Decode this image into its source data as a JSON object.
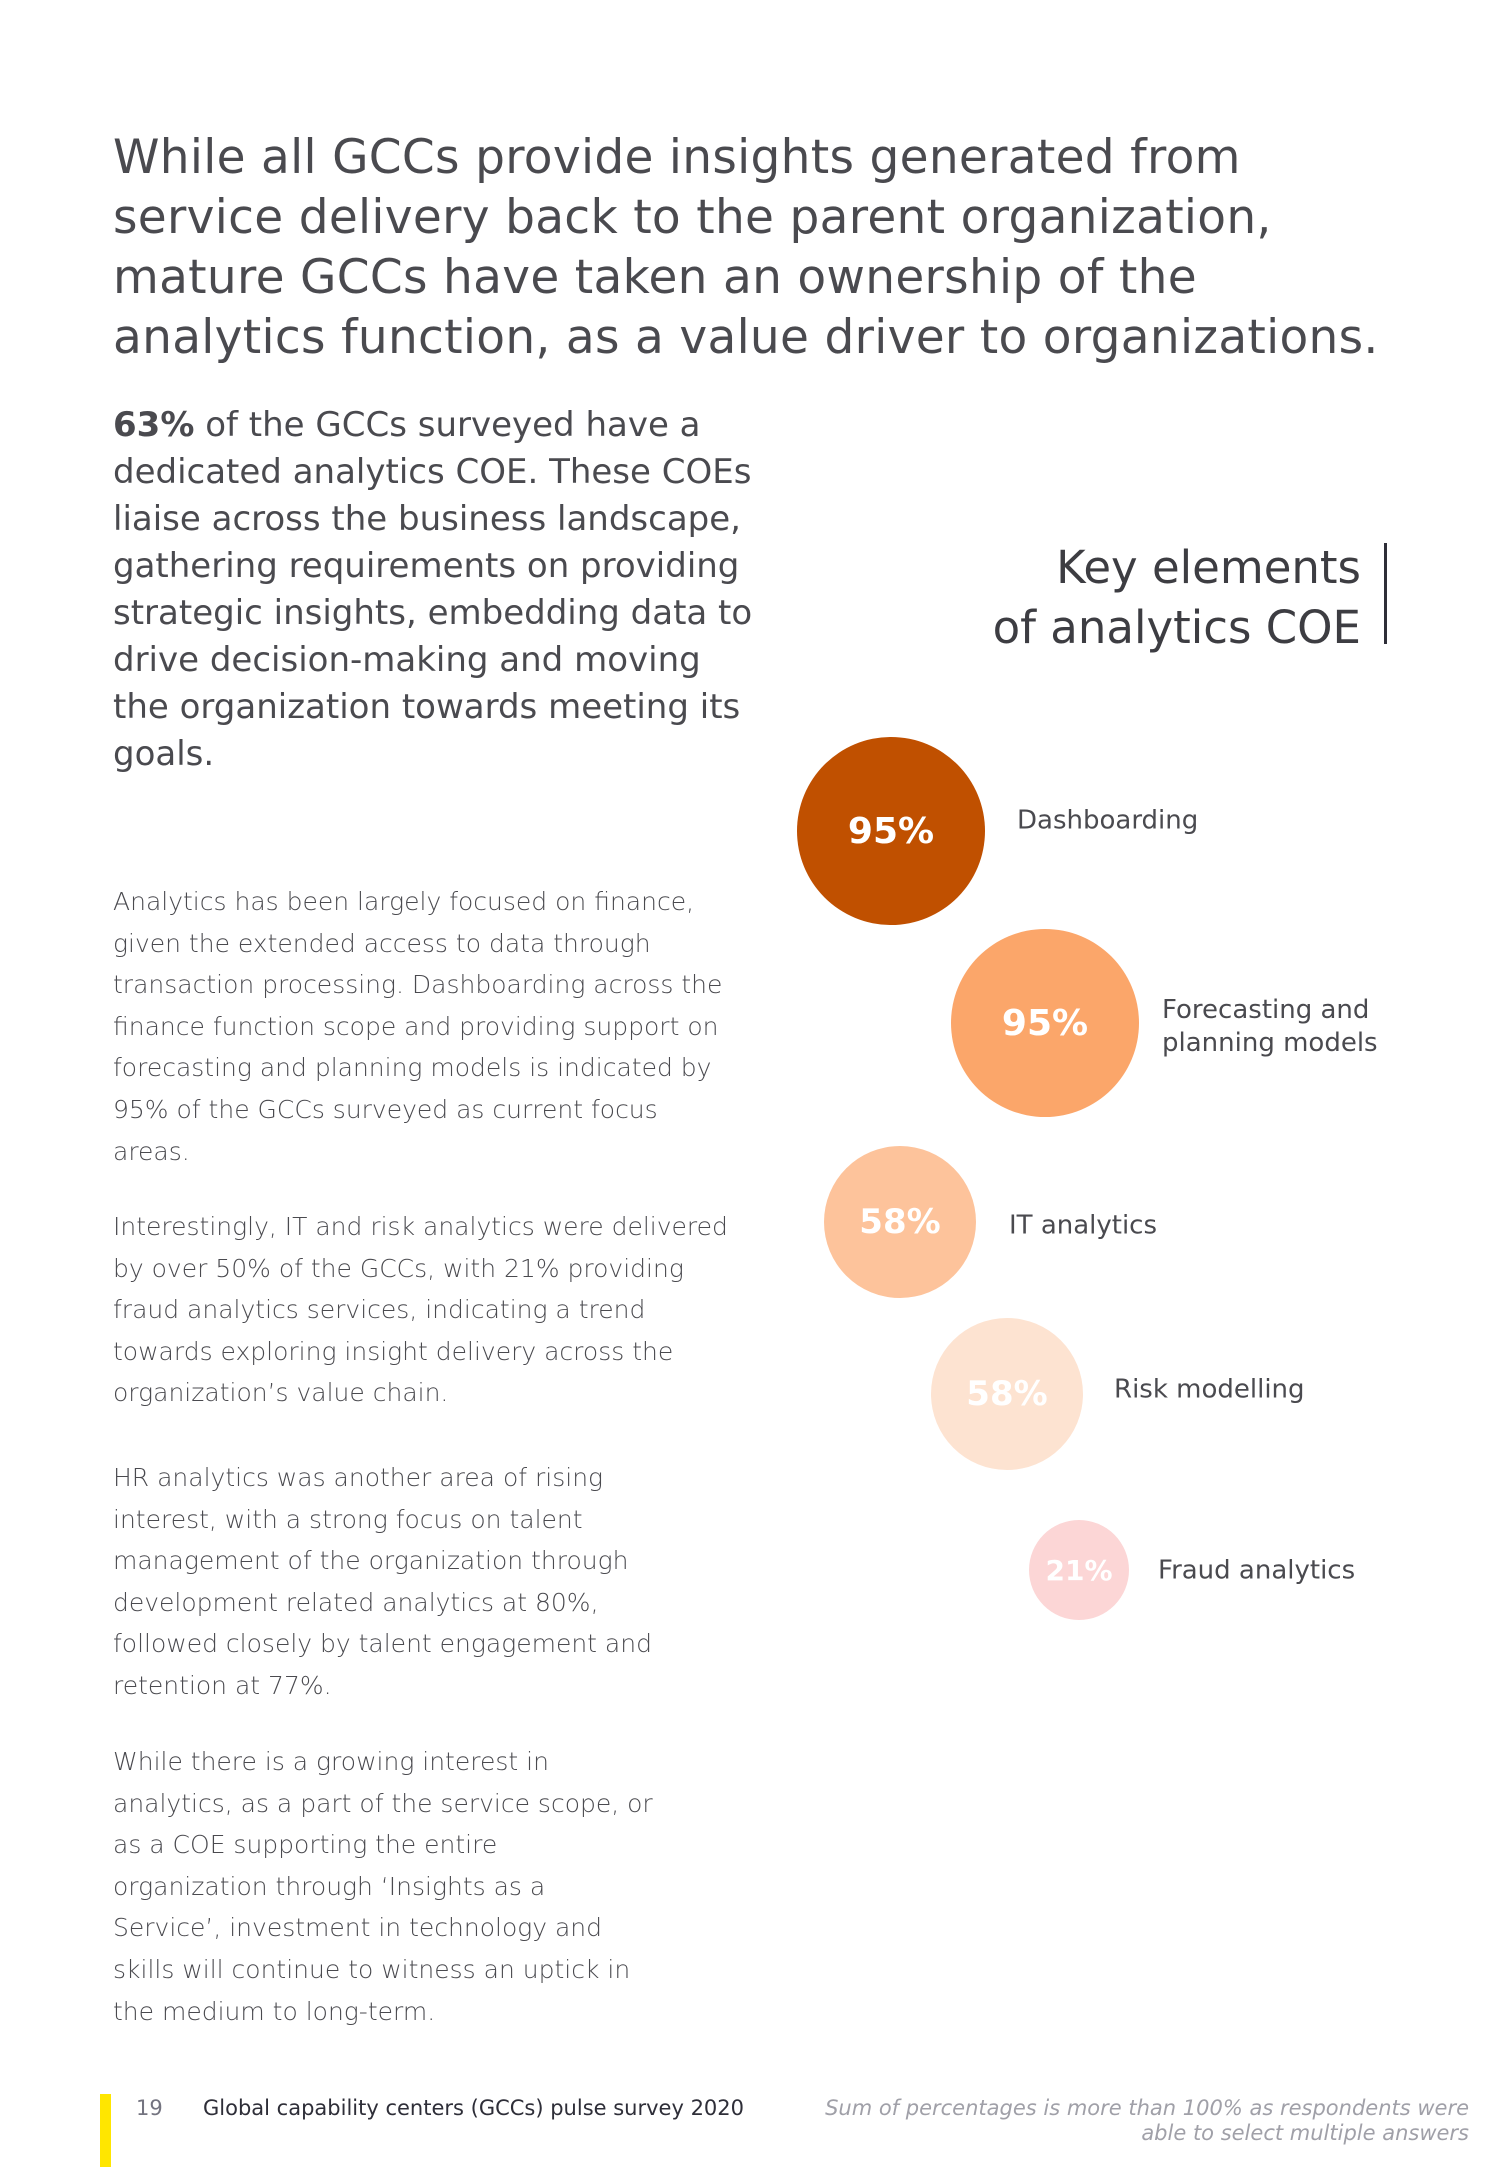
{
  "headline": "While all GCCs provide insights generated from service delivery back to the parent organization, mature GCCs have taken an ownership of the analytics function, as a value driver to organizations.",
  "lead": {
    "highlight": "63%",
    "text": " of the GCCs surveyed have a dedicated analytics COE. These COEs liaise across the business landscape, gathering requirements on providing strategic insights, embedding data to drive decision-making and moving the organization towards meeting its goals."
  },
  "paragraphs": [
    "Analytics has been largely focused on finance, given the extended access to data through transaction processing. Dashboarding across the finance function scope and providing support on forecasting and planning models is indicated by 95% of the GCCs surveyed as current focus areas.",
    "Interestingly, IT and risk analytics were delivered by over 50% of the GCCs, with 21% providing fraud analytics services, indicating a trend towards exploring insight delivery across the organization’s value chain.",
    "HR analytics was another area of rising interest, with a strong focus on talent management of the organization through development related analytics at 80%, followed closely by talent engagement and retention at 77%.",
    "While there is a growing interest in analytics, as a part of the service scope, or as a COE supporting the entire organization through ‘Insights as a Service’, investment in technology and skills will continue to witness an uptick in the medium to long-term."
  ],
  "key_elements": {
    "title_line1": "Key elements",
    "title_line2": "of analytics COE",
    "items": [
      {
        "value": "95%",
        "label": "Dashboarding",
        "color": "#c05000"
      },
      {
        "value": "95%",
        "label": "Forecasting and planning models",
        "color": "#fba66a"
      },
      {
        "value": "58%",
        "label": "IT analytics",
        "color": "#fdc39b"
      },
      {
        "value": "58%",
        "label": "Risk modelling",
        "color": "#fde3d1"
      },
      {
        "value": "21%",
        "label": "Fraud analytics",
        "color": "#fcd6d6"
      }
    ]
  },
  "footer": {
    "page_number": "19",
    "doc_title": "Global capability centers (GCCs) pulse survey 2020",
    "note_line1": "Sum of percentages is more than 100% as respondents were",
    "note_line2": "able to select multiple answers",
    "accent_color": "#ffe600"
  }
}
